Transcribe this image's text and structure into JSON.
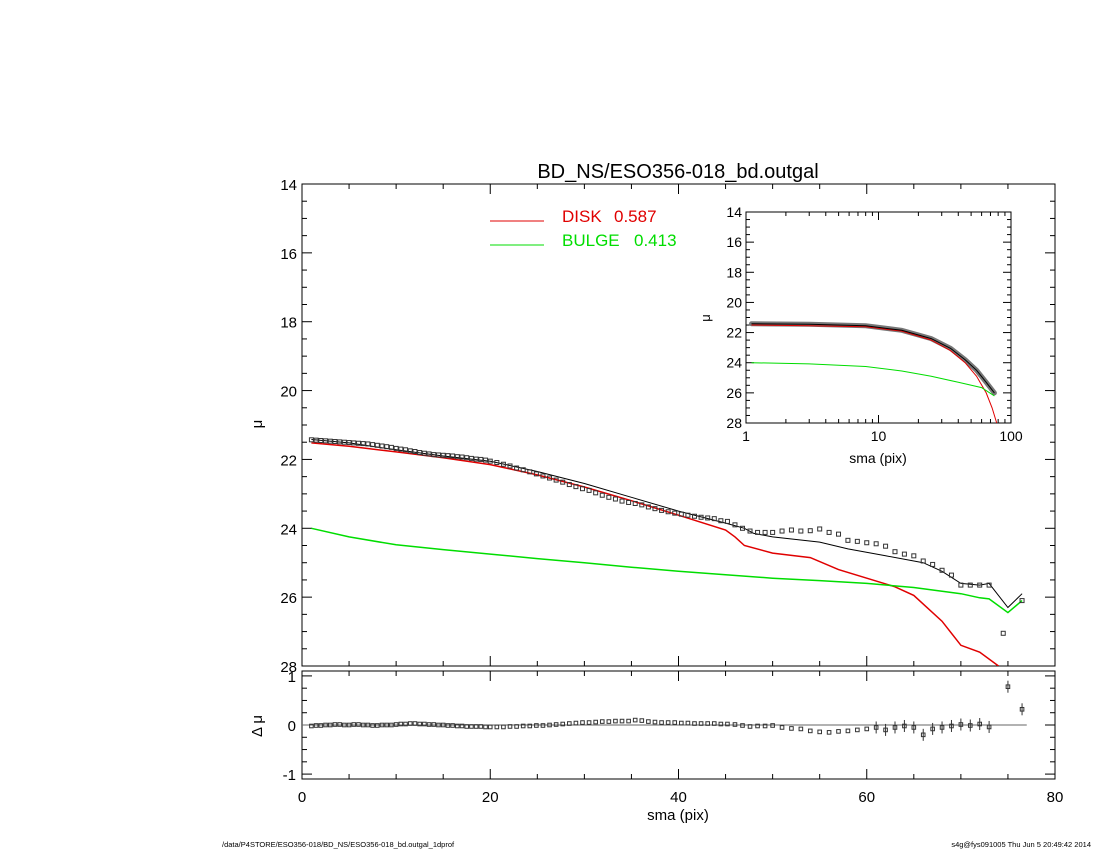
{
  "colors": {
    "axis": "#000000",
    "model": "#000000",
    "data_marker": "#333333",
    "disk": "#e00000",
    "bulge": "#00dd00",
    "residual_ref": "#666666"
  },
  "chart_data": [
    {
      "id": "main",
      "type": "line",
      "title": "BD_NS/ESO356-018_bd.outgal",
      "xlabel": "",
      "ylabel": "μ",
      "xlim": [
        0,
        80
      ],
      "ylim": [
        28,
        14
      ],
      "y_inverted": true,
      "xticks": [
        0,
        20,
        40,
        60,
        80
      ],
      "yticks": [
        14,
        16,
        18,
        20,
        22,
        24,
        26,
        28
      ],
      "legend": {
        "placement": "top-center",
        "entries": [
          {
            "label": "DISK",
            "value": "0.587",
            "color": "#e00000"
          },
          {
            "label": "BULGE",
            "value": "0.413",
            "color": "#00dd00"
          }
        ]
      },
      "series": [
        {
          "name": "DISK",
          "color": "#e00000",
          "points": [
            [
              1,
              21.52
            ],
            [
              5,
              21.62
            ],
            [
              10,
              21.78
            ],
            [
              15,
              21.95
            ],
            [
              20,
              22.15
            ],
            [
              25,
              22.45
            ],
            [
              30,
              22.8
            ],
            [
              35,
              23.2
            ],
            [
              40,
              23.62
            ],
            [
              45,
              24.05
            ],
            [
              46,
              24.25
            ],
            [
              47,
              24.5
            ],
            [
              50,
              24.72
            ],
            [
              54,
              24.85
            ],
            [
              57,
              25.2
            ],
            [
              60,
              25.45
            ],
            [
              63,
              25.7
            ],
            [
              65,
              25.95
            ],
            [
              68,
              26.7
            ],
            [
              70,
              27.4
            ],
            [
              72,
              27.6
            ],
            [
              74,
              28.0
            ]
          ]
        },
        {
          "name": "BULGE",
          "color": "#00dd00",
          "points": [
            [
              1,
              24.0
            ],
            [
              5,
              24.25
            ],
            [
              10,
              24.48
            ],
            [
              15,
              24.62
            ],
            [
              20,
              24.75
            ],
            [
              25,
              24.88
            ],
            [
              30,
              25.0
            ],
            [
              35,
              25.13
            ],
            [
              40,
              25.25
            ],
            [
              45,
              25.35
            ],
            [
              50,
              25.45
            ],
            [
              55,
              25.52
            ],
            [
              60,
              25.6
            ],
            [
              65,
              25.72
            ],
            [
              70,
              25.9
            ],
            [
              72,
              26.02
            ],
            [
              73,
              26.05
            ],
            [
              75,
              26.45
            ],
            [
              76.5,
              26.1
            ]
          ]
        },
        {
          "name": "",
          "color": "#000000",
          "points": [
            [
              1,
              21.42
            ],
            [
              5,
              21.52
            ],
            [
              10,
              21.72
            ],
            [
              15,
              21.9
            ],
            [
              20,
              22.05
            ],
            [
              25,
              22.35
            ],
            [
              30,
              22.7
            ],
            [
              35,
              23.1
            ],
            [
              40,
              23.5
            ],
            [
              45,
              23.85
            ],
            [
              47,
              24.0
            ],
            [
              48,
              24.15
            ],
            [
              50,
              24.25
            ],
            [
              55,
              24.4
            ],
            [
              58,
              24.6
            ],
            [
              62,
              24.8
            ],
            [
              66,
              25.0
            ],
            [
              68,
              25.25
            ],
            [
              70,
              25.6
            ],
            [
              72,
              25.65
            ],
            [
              73,
              25.6
            ],
            [
              75,
              26.3
            ],
            [
              76.5,
              25.9
            ]
          ]
        }
      ],
      "data_points": {
        "x": [
          1,
          1.5,
          2,
          2.5,
          3,
          3.5,
          4,
          4.5,
          5,
          5.5,
          6,
          6.5,
          7,
          7.5,
          8,
          8.5,
          9,
          9.5,
          10,
          10.5,
          11,
          11.5,
          12,
          12.5,
          13,
          13.5,
          14,
          14.5,
          15,
          15.5,
          16,
          16.5,
          17,
          17.5,
          18,
          18.5,
          19,
          19.5,
          20,
          20.7,
          21.4,
          22.1,
          22.8,
          23.5,
          24.2,
          24.9,
          25.6,
          26.3,
          27,
          27.7,
          28.4,
          29.1,
          29.8,
          30.5,
          31.2,
          31.9,
          32.6,
          33.3,
          34,
          34.7,
          35.4,
          36.1,
          36.8,
          37.5,
          38.2,
          38.9,
          39.6,
          40.3,
          41,
          41.7,
          42.4,
          43.1,
          43.8,
          44.5,
          45.2,
          46,
          46.8,
          47.6,
          48.4,
          49.2,
          50,
          51,
          52,
          53,
          54,
          55,
          56,
          57,
          58,
          59,
          60,
          61,
          62,
          63,
          64,
          65,
          66,
          67,
          68,
          69,
          70,
          71,
          72,
          73,
          74.5,
          76.5
        ],
        "y": [
          21.43,
          21.44,
          21.45,
          21.46,
          21.47,
          21.48,
          21.49,
          21.5,
          21.51,
          21.52,
          21.53,
          21.54,
          21.55,
          21.57,
          21.59,
          21.61,
          21.63,
          21.65,
          21.68,
          21.7,
          21.72,
          21.75,
          21.77,
          21.8,
          21.82,
          21.84,
          21.86,
          21.87,
          21.88,
          21.89,
          21.9,
          21.92,
          21.93,
          21.95,
          21.97,
          21.99,
          22.0,
          22.02,
          22.05,
          22.09,
          22.14,
          22.19,
          22.25,
          22.3,
          22.36,
          22.42,
          22.48,
          22.54,
          22.6,
          22.66,
          22.73,
          22.79,
          22.85,
          22.9,
          22.97,
          23.04,
          23.1,
          23.15,
          23.21,
          23.25,
          23.28,
          23.32,
          23.38,
          23.43,
          23.48,
          23.52,
          23.56,
          23.59,
          23.62,
          23.65,
          23.68,
          23.7,
          23.72,
          23.78,
          23.8,
          23.9,
          24.0,
          24.08,
          24.12,
          24.12,
          24.12,
          24.08,
          24.05,
          24.08,
          24.07,
          24.02,
          24.12,
          24.17,
          24.35,
          24.38,
          24.42,
          24.45,
          24.52,
          24.68,
          24.75,
          24.8,
          24.95,
          25.05,
          25.22,
          25.36,
          25.65,
          25.65,
          25.65,
          25.65,
          27.05,
          26.1
        ]
      }
    },
    {
      "id": "inset",
      "type": "line",
      "title": "",
      "xlabel": "sma (pix)",
      "ylabel": "μ",
      "xscale": "log",
      "xlim": [
        1,
        100
      ],
      "ylim": [
        28,
        14
      ],
      "y_inverted": true,
      "xticks": [
        1,
        10,
        100
      ],
      "yticks": [
        14,
        16,
        18,
        20,
        22,
        24,
        26,
        28
      ],
      "series": [
        {
          "name": "DISK",
          "color": "#e00000",
          "points": [
            [
              1.1,
              21.5
            ],
            [
              3,
              21.55
            ],
            [
              8,
              21.62
            ],
            [
              15,
              21.9
            ],
            [
              25,
              22.5
            ],
            [
              35,
              23.2
            ],
            [
              45,
              24.0
            ],
            [
              55,
              24.9
            ],
            [
              65,
              26.0
            ],
            [
              72,
              27.0
            ],
            [
              78,
              28.0
            ]
          ]
        },
        {
          "name": "BULGE",
          "color": "#00dd00",
          "points": [
            [
              1.1,
              24.0
            ],
            [
              3,
              24.08
            ],
            [
              8,
              24.25
            ],
            [
              15,
              24.55
            ],
            [
              25,
              24.9
            ],
            [
              40,
              25.3
            ],
            [
              60,
              25.65
            ],
            [
              75,
              26.2
            ]
          ]
        },
        {
          "name": "",
          "color": "#000000",
          "points": [
            [
              1.1,
              21.42
            ],
            [
              3,
              21.45
            ],
            [
              8,
              21.55
            ],
            [
              15,
              21.85
            ],
            [
              25,
              22.4
            ],
            [
              35,
              23.05
            ],
            [
              45,
              23.8
            ],
            [
              55,
              24.5
            ],
            [
              65,
              25.3
            ],
            [
              75,
              26.0
            ]
          ]
        }
      ]
    },
    {
      "id": "residual",
      "type": "scatter",
      "xlabel": "sma (pix)",
      "ylabel": "Δ μ",
      "xlim": [
        0,
        80
      ],
      "ylim": [
        -1.1,
        1.1
      ],
      "xticks": [
        0,
        20,
        40,
        60,
        80
      ],
      "yticks": [
        1,
        0,
        -1
      ],
      "zero_line_x": [
        0,
        77
      ],
      "points": [
        [
          1,
          -0.02
        ],
        [
          1.5,
          -0.01
        ],
        [
          2,
          -0.01
        ],
        [
          2.5,
          0.0
        ],
        [
          3,
          0.0
        ],
        [
          3.5,
          0.01
        ],
        [
          4,
          0.01
        ],
        [
          4.5,
          0.0
        ],
        [
          5,
          0.0
        ],
        [
          5.5,
          0.01
        ],
        [
          6,
          0.01
        ],
        [
          6.5,
          0.0
        ],
        [
          7,
          0.0
        ],
        [
          7.5,
          -0.01
        ],
        [
          8,
          -0.01
        ],
        [
          8.5,
          0.0
        ],
        [
          9,
          0.0
        ],
        [
          9.5,
          0.0
        ],
        [
          10,
          0.01
        ],
        [
          10.5,
          0.02
        ],
        [
          11,
          0.02
        ],
        [
          11.5,
          0.03
        ],
        [
          12,
          0.03
        ],
        [
          12.5,
          0.02
        ],
        [
          13,
          0.02
        ],
        [
          13.5,
          0.01
        ],
        [
          14,
          0.01
        ],
        [
          14.5,
          0.0
        ],
        [
          15,
          0.0
        ],
        [
          15.5,
          -0.01
        ],
        [
          16,
          -0.01
        ],
        [
          16.5,
          -0.02
        ],
        [
          17,
          -0.02
        ],
        [
          17.5,
          -0.03
        ],
        [
          18,
          -0.03
        ],
        [
          18.5,
          -0.03
        ],
        [
          19,
          -0.03
        ],
        [
          19.5,
          -0.04
        ],
        [
          20,
          -0.04
        ],
        [
          20.7,
          -0.04
        ],
        [
          21.4,
          -0.04
        ],
        [
          22.1,
          -0.03
        ],
        [
          22.8,
          -0.03
        ],
        [
          23.5,
          -0.02
        ],
        [
          24.2,
          -0.02
        ],
        [
          24.9,
          -0.01
        ],
        [
          25.6,
          -0.01
        ],
        [
          26.3,
          0.0
        ],
        [
          27,
          0.01
        ],
        [
          27.7,
          0.02
        ],
        [
          28.4,
          0.03
        ],
        [
          29.1,
          0.04
        ],
        [
          29.8,
          0.05
        ],
        [
          30.5,
          0.05
        ],
        [
          31.2,
          0.06
        ],
        [
          31.9,
          0.07
        ],
        [
          32.6,
          0.07
        ],
        [
          33.3,
          0.08
        ],
        [
          34,
          0.08
        ],
        [
          34.7,
          0.08
        ],
        [
          35.4,
          0.1
        ],
        [
          36.1,
          0.09
        ],
        [
          36.8,
          0.07
        ],
        [
          37.5,
          0.06
        ],
        [
          38.2,
          0.05
        ],
        [
          38.9,
          0.05
        ],
        [
          39.6,
          0.05
        ],
        [
          40.3,
          0.04
        ],
        [
          41,
          0.04
        ],
        [
          41.7,
          0.03
        ],
        [
          42.4,
          0.03
        ],
        [
          43.1,
          0.03
        ],
        [
          43.8,
          0.03
        ],
        [
          44.5,
          0.02
        ],
        [
          45.2,
          0.02
        ],
        [
          46,
          0.01
        ],
        [
          46.8,
          -0.01
        ],
        [
          47.6,
          -0.03
        ],
        [
          48.4,
          -0.02
        ],
        [
          49.2,
          -0.02
        ],
        [
          50,
          -0.01
        ],
        [
          51,
          -0.05
        ],
        [
          52,
          -0.07
        ],
        [
          53,
          -0.08
        ],
        [
          54,
          -0.12
        ],
        [
          55,
          -0.14
        ],
        [
          56,
          -0.15
        ],
        [
          57,
          -0.13
        ],
        [
          58,
          -0.12
        ],
        [
          59,
          -0.1
        ],
        [
          60,
          -0.08
        ],
        [
          61,
          -0.05
        ],
        [
          62,
          -0.1
        ],
        [
          63,
          -0.05
        ],
        [
          64,
          -0.02
        ],
        [
          65,
          -0.05
        ],
        [
          66,
          -0.2
        ],
        [
          67,
          -0.08
        ],
        [
          68,
          -0.05
        ],
        [
          69,
          -0.02
        ],
        [
          70,
          0.01
        ],
        [
          71,
          -0.01
        ],
        [
          72,
          0.02
        ],
        [
          73,
          -0.04
        ],
        [
          75,
          0.78
        ],
        [
          76.5,
          0.32
        ]
      ]
    }
  ],
  "footer": {
    "left": "/data/P4STORE/ESO356-018/BD_NS/ESO356-018_bd.outgal_1dprof",
    "right": "s4g@fys091005  Thu Jun  5 20:49:42 2014"
  }
}
